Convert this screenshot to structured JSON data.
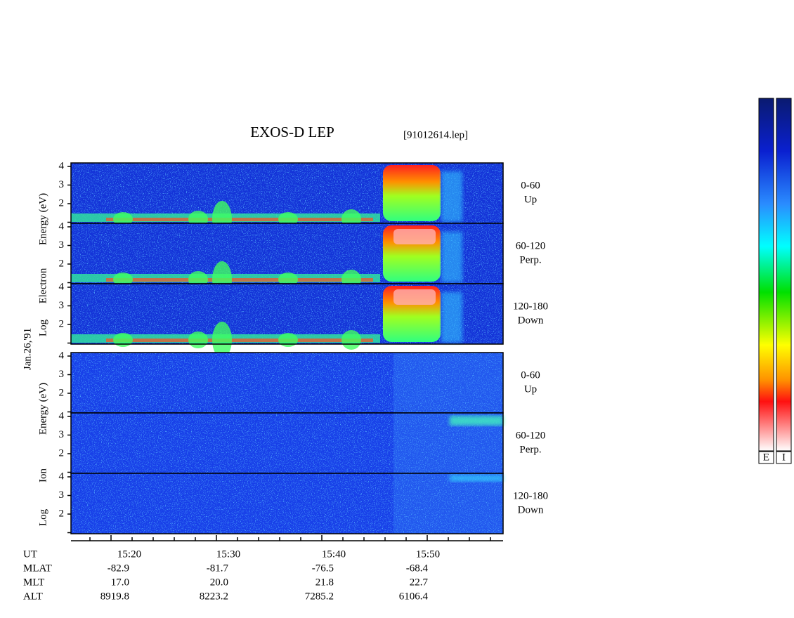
{
  "header": {
    "title": "EXOS-D LEP",
    "file": "[91012614.lep]"
  },
  "date": "Jan.26,'91",
  "yticks": [
    "2",
    "3",
    "4"
  ],
  "electron": {
    "ylabel": [
      "Log",
      "Electron",
      "Energy (eV)"
    ],
    "panels": [
      {
        "angle": "0-60",
        "dir": "Up"
      },
      {
        "angle": "60-120",
        "dir": "Perp."
      },
      {
        "angle": "120-180",
        "dir": "Down"
      }
    ]
  },
  "ion": {
    "ylabel": [
      "Log",
      "Ion",
      "Energy (eV)"
    ],
    "panels": [
      {
        "angle": "0-60",
        "dir": "Up"
      },
      {
        "angle": "60-120",
        "dir": "Perp."
      },
      {
        "angle": "120-180",
        "dir": "Down"
      }
    ]
  },
  "orbit": [
    {
      "name": "UT",
      "values": [
        "15:20",
        "15:30",
        "15:40",
        "15:50"
      ]
    },
    {
      "name": "MLAT",
      "values": [
        "-82.9",
        "-81.7",
        "-76.5",
        "-68.4"
      ]
    },
    {
      "name": "MLT",
      "values": [
        "17.0",
        "20.0",
        "21.8",
        "22.7"
      ]
    },
    {
      "name": "ALT",
      "values": [
        "8919.8",
        "8223.2",
        "7285.2",
        "6106.4"
      ]
    }
  ],
  "colorbar": {
    "labels": [
      "E",
      "I"
    ]
  }
}
